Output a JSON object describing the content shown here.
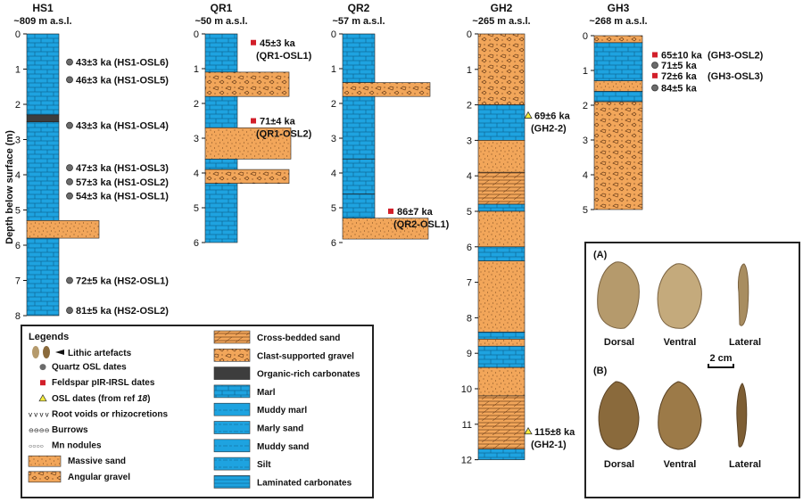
{
  "figure": {
    "ylabel": "Depth below surface (m)",
    "colors": {
      "blue": "#1ea3e0",
      "orange": "#f2a65a",
      "dark": "#3d3d3d",
      "red": "#d21f2a",
      "yellow": "#f4ec3c",
      "grey": "#6b6b6b"
    },
    "columns": [
      {
        "id": "HS1",
        "title": "HS1",
        "elev": "~809 m a.s.l.",
        "max_depth": 8,
        "layers": [
          {
            "from": 0,
            "to": 2.3,
            "type": "marl"
          },
          {
            "from": 2.3,
            "to": 2.5,
            "type": "organic"
          },
          {
            "from": 2.5,
            "to": 5.3,
            "type": "marl"
          },
          {
            "from": 5.3,
            "to": 5.8,
            "type": "sand"
          },
          {
            "from": 5.8,
            "to": 8,
            "type": "marl"
          }
        ],
        "dates": [
          {
            "depth": 0.8,
            "kind": "quartz",
            "label": "43±3 ka (HS1-OSL6)"
          },
          {
            "depth": 1.3,
            "kind": "quartz",
            "label": "46±3 ka (HS1-OSL5)"
          },
          {
            "depth": 2.6,
            "kind": "quartz",
            "label": "43±3 ka (HS1-OSL4)"
          },
          {
            "depth": 3.8,
            "kind": "quartz",
            "label": "47±3 ka (HS1-OSL3)"
          },
          {
            "depth": 4.2,
            "kind": "quartz",
            "label": "57±3 ka (HS1-OSL2)"
          },
          {
            "depth": 4.6,
            "kind": "quartz",
            "label": "54±3 ka (HS1-OSL1)"
          },
          {
            "depth": 7.0,
            "kind": "quartz",
            "label": "72±5 ka (HS2-OSL1)"
          },
          {
            "depth": 7.85,
            "kind": "quartz",
            "label": "81±5 ka (HS2-OSL2)"
          }
        ]
      },
      {
        "id": "QR1",
        "title": "QR1",
        "elev": "~50 m a.s.l.",
        "max_depth": 6,
        "layers": [
          {
            "from": 0,
            "to": 1.1,
            "type": "marl"
          },
          {
            "from": 1.1,
            "to": 1.8,
            "type": "gravel"
          },
          {
            "from": 1.8,
            "to": 2.7,
            "type": "marl"
          },
          {
            "from": 2.7,
            "to": 3.6,
            "type": "sand"
          },
          {
            "from": 3.6,
            "to": 3.9,
            "type": "marl"
          },
          {
            "from": 3.9,
            "to": 4.3,
            "type": "gravel"
          },
          {
            "from": 4.3,
            "to": 6,
            "type": "marl"
          }
        ],
        "dates": [
          {
            "depth": 0.25,
            "kind": "feldspar",
            "label": "45±3 ka",
            "sub": "(QR1-OSL1)"
          },
          {
            "depth": 2.5,
            "kind": "feldspar",
            "label": "71±4 ka",
            "sub": "(QR1-OSL2)"
          }
        ]
      },
      {
        "id": "QR2",
        "title": "QR2",
        "elev": "~57 m a.s.l.",
        "max_depth": 6,
        "layers": [
          {
            "from": 0,
            "to": 1.4,
            "type": "marl"
          },
          {
            "from": 1.4,
            "to": 1.8,
            "type": "gravel"
          },
          {
            "from": 1.8,
            "to": 3.6,
            "type": "marl"
          },
          {
            "from": 3.6,
            "to": 4.6,
            "type": "marl"
          },
          {
            "from": 4.6,
            "to": 5.3,
            "type": "marl"
          },
          {
            "from": 5.3,
            "to": 5.9,
            "type": "sand"
          }
        ],
        "dates": [
          {
            "depth": 5.1,
            "kind": "feldspar",
            "label": "86±7 ka",
            "sub": "(QR2-OSL1)"
          }
        ]
      },
      {
        "id": "GH2",
        "title": "GH2",
        "elev": "~265 m a.s.l.",
        "max_depth": 12,
        "layers": [
          {
            "from": 0,
            "to": 2.0,
            "type": "gravel"
          },
          {
            "from": 2.0,
            "to": 3.0,
            "type": "marl"
          },
          {
            "from": 3.0,
            "to": 3.9,
            "type": "sand"
          },
          {
            "from": 3.9,
            "to": 4.8,
            "type": "crossbed"
          },
          {
            "from": 4.8,
            "to": 5.0,
            "type": "marl"
          },
          {
            "from": 5.0,
            "to": 6.0,
            "type": "sand"
          },
          {
            "from": 6.0,
            "to": 6.4,
            "type": "marl"
          },
          {
            "from": 6.4,
            "to": 8.4,
            "type": "sand"
          },
          {
            "from": 8.4,
            "to": 8.6,
            "type": "marl"
          },
          {
            "from": 8.6,
            "to": 8.8,
            "type": "sand"
          },
          {
            "from": 8.8,
            "to": 9.4,
            "type": "marl"
          },
          {
            "from": 9.4,
            "to": 10.2,
            "type": "sand"
          },
          {
            "from": 10.2,
            "to": 11.7,
            "type": "crossbed"
          },
          {
            "from": 11.7,
            "to": 12,
            "type": "marl"
          }
        ],
        "dates": [
          {
            "depth": 2.3,
            "kind": "ref",
            "label": "69±6 ka",
            "sub": "(GH2-2)"
          },
          {
            "depth": 11.2,
            "kind": "ref",
            "label": "115±8 ka",
            "sub": "(GH2-1)"
          }
        ]
      },
      {
        "id": "GH3",
        "title": "GH3",
        "elev": "~268 m a.s.l.",
        "max_depth": 5,
        "layers": [
          {
            "from": 0,
            "to": 0.2,
            "type": "gravel"
          },
          {
            "from": 0.2,
            "to": 1.3,
            "type": "marl"
          },
          {
            "from": 1.3,
            "to": 1.6,
            "type": "sand"
          },
          {
            "from": 1.6,
            "to": 1.9,
            "type": "marl"
          },
          {
            "from": 1.9,
            "to": 5,
            "type": "gravel"
          }
        ],
        "dates": [
          {
            "depth": 0.55,
            "kind": "feldspar",
            "label": "65±10 ka",
            "code": "(GH3-OSL2)"
          },
          {
            "depth": 0.85,
            "kind": "quartz",
            "label": "71±5 ka"
          },
          {
            "depth": 1.15,
            "kind": "feldspar",
            "label": "72±6 ka",
            "code": "(GH3-OSL3)"
          },
          {
            "depth": 1.5,
            "kind": "quartz",
            "label": "84±5 ka"
          }
        ]
      }
    ],
    "legend": {
      "title": "Legends",
      "left_items": [
        {
          "sym": "artefact",
          "label": "Lithic artefacts"
        },
        {
          "sym": "quartz",
          "label": "Quartz OSL dates"
        },
        {
          "sym": "feldspar",
          "label": "Feldspar pIR-IRSL dates"
        },
        {
          "sym": "ref",
          "label": "OSL dates (from ref",
          "ref": "18"
        },
        {
          "sym": "roots",
          "label": "Root voids or rhizocretions"
        },
        {
          "sym": "burrows",
          "label": "Burrows"
        },
        {
          "sym": "mn",
          "label": "Mn nodules"
        },
        {
          "sym": "sand",
          "label": "Massive sand"
        },
        {
          "sym": "angular",
          "label": "Angular gravel"
        }
      ],
      "right_items": [
        {
          "sym": "crossbed",
          "label": "Cross-bedded sand"
        },
        {
          "sym": "gravel",
          "label": "Clast-supported gravel"
        },
        {
          "sym": "organic",
          "label": "Organic-rich carbonates"
        },
        {
          "sym": "marl",
          "label": "Marl"
        },
        {
          "sym": "muddymarl",
          "label": "Muddy marl"
        },
        {
          "sym": "marlysand",
          "label": "Marly sand"
        },
        {
          "sym": "muddysand",
          "label": "Muddy sand"
        },
        {
          "sym": "silt",
          "label": "Silt"
        },
        {
          "sym": "laminated",
          "label": "Laminated carbonates"
        }
      ]
    },
    "photo_panel": {
      "label_a": "(A)",
      "label_b": "(B)",
      "views": [
        "Dorsal",
        "Ventral",
        "Lateral"
      ],
      "scale_label": "2 cm"
    }
  }
}
